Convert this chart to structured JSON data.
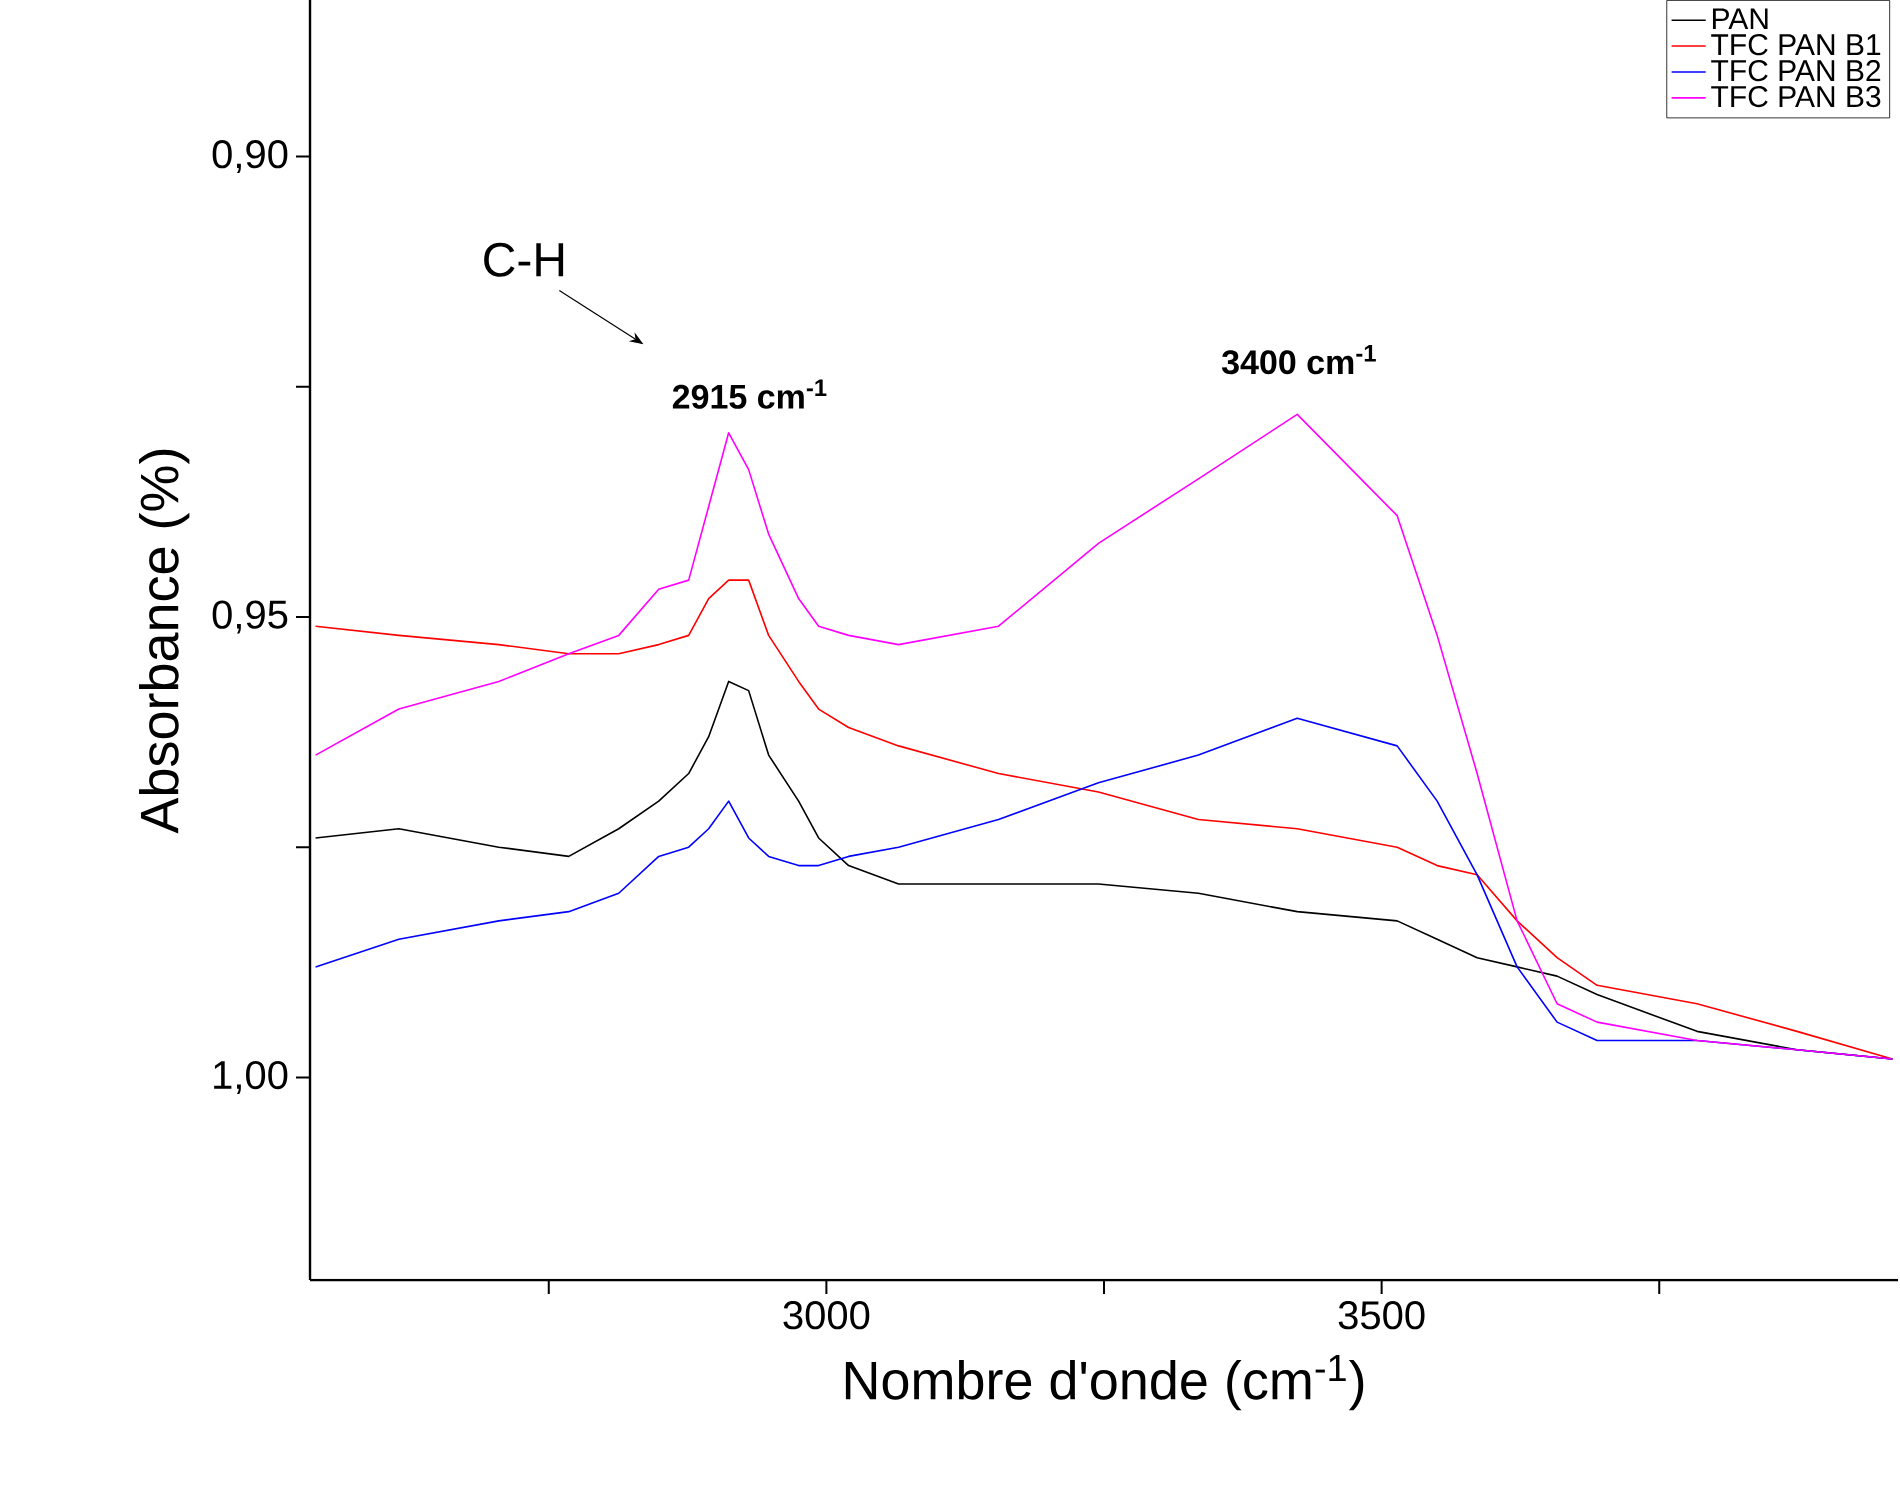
{
  "chart_data": {
    "type": "line",
    "xlabel": "Nombre d'onde (cm$^{-1}$)",
    "ylabel": "Absorbance (%)",
    "xlim": [
      2535,
      3965
    ],
    "ylim": [
      1.022,
      0.883
    ],
    "xticks": [
      {
        "value": 2750,
        "label": null
      },
      3000,
      {
        "value": 3250,
        "label": null
      },
      3500,
      {
        "value": 3750,
        "label": null
      }
    ],
    "yticks": [
      {
        "value": 0.9,
        "label": "0,90"
      },
      {
        "value": 0.925,
        "label": null
      },
      {
        "value": 0.95,
        "label": "0,95"
      },
      {
        "value": 0.975,
        "label": null
      },
      {
        "value": 1.0,
        "label": "1,00"
      }
    ],
    "legend": "top right",
    "annotations": [
      "C-H",
      "2915 cm$^{-1}$",
      "3400 cm$^{-1}$"
    ],
    "x": [
      2540,
      2615,
      2705,
      2768,
      2813,
      2849,
      2876,
      2894,
      2912,
      2930,
      2948,
      2975,
      2993,
      3020,
      3065,
      3155,
      3245,
      3335,
      3424,
      3514,
      3550,
      3586,
      3622,
      3658,
      3694,
      3784,
      3874,
      3960
    ],
    "series": [
      {
        "name": "PAN",
        "color": "#000000",
        "values": [
          0.974,
          0.973,
          0.975,
          0.976,
          0.973,
          0.97,
          0.967,
          0.963,
          0.957,
          0.958,
          0.965,
          0.97,
          0.974,
          0.977,
          0.979,
          0.979,
          0.979,
          0.98,
          0.982,
          0.983,
          0.985,
          0.987,
          0.988,
          0.989,
          0.991,
          0.995,
          0.997,
          0.998
        ]
      },
      {
        "name": "TFC PAN B1",
        "color": "#ff0000",
        "values": [
          0.951,
          0.952,
          0.953,
          0.954,
          0.954,
          0.953,
          0.952,
          0.948,
          0.946,
          0.946,
          0.952,
          0.957,
          0.96,
          0.962,
          0.964,
          0.967,
          0.969,
          0.972,
          0.973,
          0.975,
          0.977,
          0.978,
          0.983,
          0.987,
          0.99,
          0.992,
          0.995,
          0.998
        ]
      },
      {
        "name": "TFC PAN B2",
        "color": "#0000ff",
        "values": [
          0.988,
          0.985,
          0.983,
          0.982,
          0.98,
          0.976,
          0.975,
          0.973,
          0.97,
          0.974,
          0.976,
          0.977,
          0.977,
          0.976,
          0.975,
          0.972,
          0.968,
          0.965,
          0.961,
          0.964,
          0.97,
          0.978,
          0.988,
          0.994,
          0.996,
          0.996,
          0.997,
          0.998
        ]
      },
      {
        "name": "TFC PAN B3",
        "color": "#ff00ff",
        "values": [
          0.965,
          0.96,
          0.957,
          0.954,
          0.952,
          0.947,
          0.946,
          0.938,
          0.93,
          0.934,
          0.941,
          0.948,
          0.951,
          0.952,
          0.953,
          0.951,
          0.942,
          0.935,
          0.928,
          0.939,
          0.952,
          0.967,
          0.983,
          0.992,
          0.994,
          0.996,
          0.997,
          0.998
        ]
      }
    ]
  }
}
